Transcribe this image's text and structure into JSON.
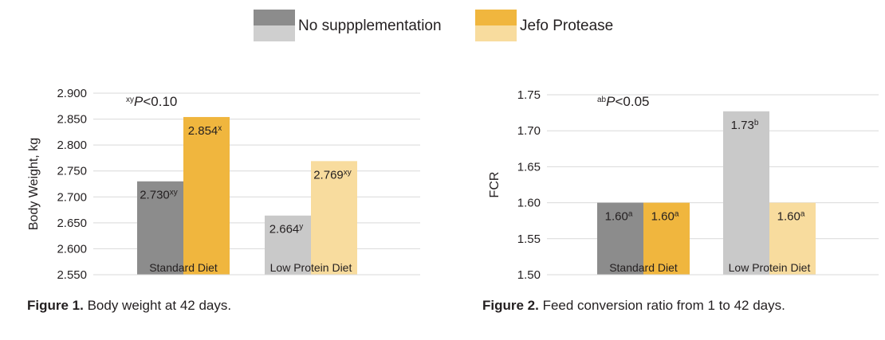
{
  "legend": {
    "items": [
      {
        "label": "No suppplementation",
        "color_dark": "#8c8c8c",
        "color_light": "#cfcfcf"
      },
      {
        "label": "Jefo Protease",
        "color_dark": "#f0b63e",
        "color_light": "#f8dc9e"
      }
    ]
  },
  "colors": {
    "standard_control": "#8c8c8c",
    "standard_protease": "#f0b63e",
    "lowprotein_control": "#c9c9c9",
    "lowprotein_protease": "#f8dc9e",
    "grid": "#d9d9d9"
  },
  "captions": [
    {
      "bold": "Figure 1.",
      "text": " Body weight at 42 days."
    },
    {
      "bold": "Figure 2.",
      "text": " Feed conversion ratio from 1 to 42 days."
    }
  ],
  "chart_data": [
    {
      "type": "bar",
      "ylabel": "Body Weight, kg",
      "ylim": [
        2.55,
        2.9
      ],
      "yticks": [
        "2.900",
        "2.850",
        "2.800",
        "2.750",
        "2.700",
        "2.650",
        "2.600",
        "2.550"
      ],
      "ytick_values": [
        2.9,
        2.85,
        2.8,
        2.75,
        2.7,
        2.65,
        2.6,
        2.55
      ],
      "grid": true,
      "categories": [
        "Standard Diet",
        "Low Protein Diet"
      ],
      "series": [
        {
          "name": "No suppplementation",
          "values": [
            2.73,
            2.664
          ],
          "labels": [
            "2.730",
            "2.664"
          ],
          "superscripts": [
            "xy",
            "y"
          ]
        },
        {
          "name": "Jefo Protease",
          "values": [
            2.854,
            2.769
          ],
          "labels": [
            "2.854",
            "2.769"
          ],
          "superscripts": [
            "x",
            "xy"
          ]
        }
      ],
      "annotation": {
        "superscript": "xy",
        "italic": "P",
        "text": "<0.10"
      }
    },
    {
      "type": "bar",
      "ylabel": "FCR",
      "ylim": [
        1.5,
        1.75
      ],
      "yticks": [
        "1.75",
        "1.70",
        "1.65",
        "1.60",
        "1.55",
        "1.50"
      ],
      "ytick_values": [
        1.75,
        1.7,
        1.65,
        1.6,
        1.55,
        1.5
      ],
      "grid": true,
      "categories": [
        "Standard Diet",
        "Low Protein Diet"
      ],
      "series": [
        {
          "name": "No suppplementation",
          "values": [
            1.6,
            1.727
          ],
          "labels": [
            "1.60",
            "1.73"
          ],
          "superscripts": [
            "a",
            "b"
          ]
        },
        {
          "name": "Jefo Protease",
          "values": [
            1.6,
            1.6
          ],
          "labels": [
            "1.60",
            "1.60"
          ],
          "superscripts": [
            "a",
            "a"
          ]
        }
      ],
      "annotation": {
        "superscript": "ab",
        "italic": "P",
        "text": "<0.05"
      }
    }
  ]
}
